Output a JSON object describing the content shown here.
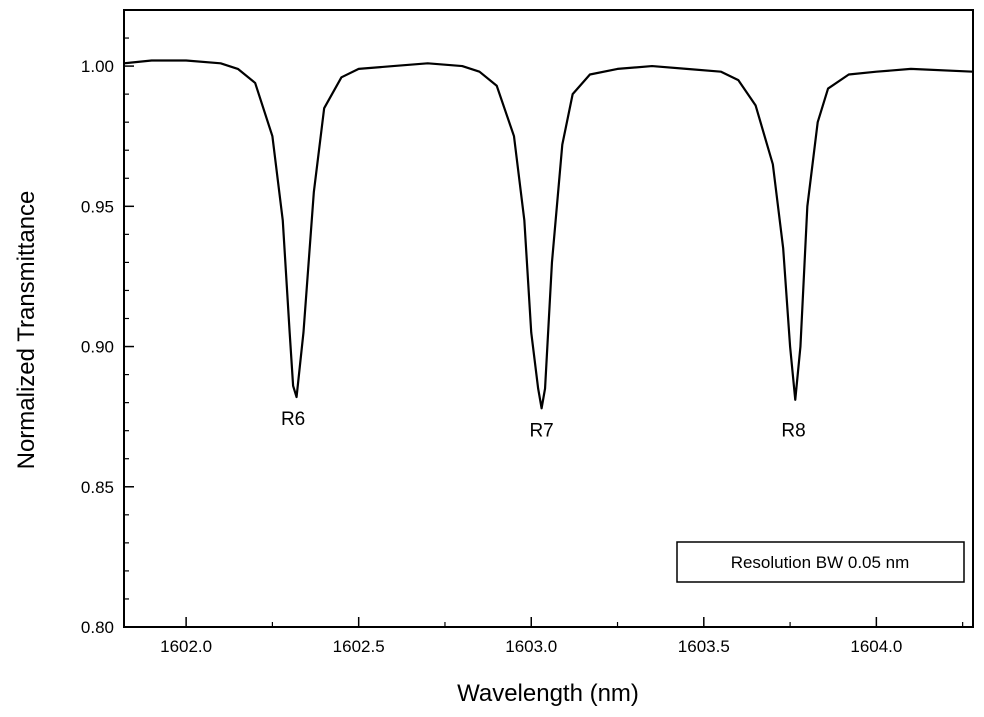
{
  "chart_data": {
    "type": "line",
    "title": "",
    "xlabel": "Wavelength (nm)",
    "ylabel": "Normalized Transmittance",
    "xlim": [
      1601.82,
      1604.28
    ],
    "ylim": [
      0.8,
      1.02
    ],
    "x_ticks": [
      1602.0,
      1602.5,
      1603.0,
      1603.5,
      1604.0
    ],
    "x_tick_labels": [
      "1602.0",
      "1602.5",
      "1603.0",
      "1603.5",
      "1604.0"
    ],
    "y_ticks": [
      0.8,
      0.85,
      0.9,
      0.95,
      1.0
    ],
    "y_tick_labels": [
      "0.80",
      "0.85",
      "0.90",
      "0.95",
      "1.00"
    ],
    "grid": false,
    "legend": "none",
    "line_color": "#000000",
    "series": [
      {
        "x": [
          1601.82,
          1601.9,
          1602.0,
          1602.1,
          1602.15,
          1602.2,
          1602.25,
          1602.28,
          1602.3,
          1602.31,
          1602.32,
          1602.34,
          1602.37,
          1602.4,
          1602.45,
          1602.5,
          1602.6,
          1602.7,
          1602.8,
          1602.85,
          1602.9,
          1602.95,
          1602.98,
          1603.0,
          1603.02,
          1603.03,
          1603.04,
          1603.06,
          1603.09,
          1603.12,
          1603.17,
          1603.25,
          1603.35,
          1603.45,
          1603.55,
          1603.6,
          1603.65,
          1603.7,
          1603.73,
          1603.75,
          1603.765,
          1603.78,
          1603.8,
          1603.83,
          1603.86,
          1603.92,
          1604.0,
          1604.1,
          1604.28
        ],
        "y": [
          1.001,
          1.002,
          1.002,
          1.001,
          0.999,
          0.994,
          0.975,
          0.945,
          0.905,
          0.886,
          0.882,
          0.905,
          0.955,
          0.985,
          0.996,
          0.999,
          1.0,
          1.001,
          1.0,
          0.998,
          0.993,
          0.975,
          0.945,
          0.905,
          0.885,
          0.878,
          0.885,
          0.93,
          0.972,
          0.99,
          0.997,
          0.999,
          1.0,
          0.999,
          0.998,
          0.995,
          0.986,
          0.965,
          0.935,
          0.9,
          0.881,
          0.9,
          0.95,
          0.98,
          0.992,
          0.997,
          0.998,
          0.999,
          0.998
        ]
      }
    ],
    "annotations": [
      {
        "text": "R6",
        "x": 1602.31,
        "y": 0.872
      },
      {
        "text": "R7",
        "x": 1603.03,
        "y": 0.868
      },
      {
        "text": "R8",
        "x": 1603.76,
        "y": 0.868
      }
    ],
    "legend_box": {
      "text": "Resolution BW 0.05 nm"
    }
  }
}
